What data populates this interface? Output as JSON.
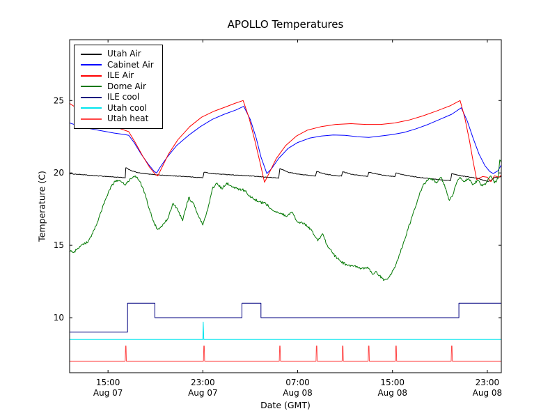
{
  "chart_data": {
    "type": "line",
    "title": "APOLLO Temperatures",
    "xlabel": "Date (GMT)",
    "ylabel": "Temperature (C)",
    "x_unit": "hours since Aug 07 00:00 GMT",
    "xlim": [
      11.76,
      48.18
    ],
    "ylim": [
      6.2,
      29.2
    ],
    "grid": false,
    "legend_position": "upper left",
    "x_ticks": [
      {
        "value": 15,
        "label_time": "15:00",
        "label_date": "Aug 07"
      },
      {
        "value": 23,
        "label_time": "23:00",
        "label_date": "Aug 07"
      },
      {
        "value": 31,
        "label_time": "07:00",
        "label_date": "Aug 08"
      },
      {
        "value": 39,
        "label_time": "15:00",
        "label_date": "Aug 08"
      },
      {
        "value": 47,
        "label_time": "23:00",
        "label_date": "Aug 08"
      }
    ],
    "y_ticks": [
      10,
      15,
      20,
      25
    ],
    "series": [
      {
        "name": "Utah Air",
        "color": "#000000",
        "noise": 0.02,
        "points": [
          [
            11.76,
            19.95
          ],
          [
            12.5,
            19.9
          ],
          [
            13.5,
            19.83
          ],
          [
            14.5,
            19.78
          ],
          [
            15.5,
            19.72
          ],
          [
            16.2,
            19.68
          ],
          [
            16.45,
            19.65
          ],
          [
            16.5,
            20.35
          ],
          [
            17.0,
            20.15
          ],
          [
            17.6,
            20.0
          ],
          [
            18.4,
            19.92
          ],
          [
            19.4,
            19.85
          ],
          [
            20.4,
            19.8
          ],
          [
            21.4,
            19.76
          ],
          [
            22.4,
            19.7
          ],
          [
            23.0,
            19.67
          ],
          [
            23.1,
            20.05
          ],
          [
            23.8,
            19.95
          ],
          [
            24.8,
            19.9
          ],
          [
            25.8,
            19.85
          ],
          [
            26.8,
            19.8
          ],
          [
            27.8,
            19.74
          ],
          [
            28.8,
            19.68
          ],
          [
            29.4,
            19.64
          ],
          [
            29.5,
            20.3
          ],
          [
            30.2,
            20.05
          ],
          [
            31.0,
            19.92
          ],
          [
            32.0,
            19.83
          ],
          [
            32.5,
            19.78
          ],
          [
            32.6,
            20.1
          ],
          [
            33.4,
            19.9
          ],
          [
            34.2,
            19.82
          ],
          [
            34.7,
            19.78
          ],
          [
            34.8,
            20.08
          ],
          [
            35.6,
            19.9
          ],
          [
            36.4,
            19.8
          ],
          [
            36.9,
            19.76
          ],
          [
            37.0,
            20.05
          ],
          [
            37.8,
            19.9
          ],
          [
            38.6,
            19.8
          ],
          [
            39.2,
            19.74
          ],
          [
            39.3,
            20.0
          ],
          [
            40.0,
            19.85
          ],
          [
            41.0,
            19.72
          ],
          [
            42.0,
            19.62
          ],
          [
            43.0,
            19.53
          ],
          [
            43.9,
            19.47
          ],
          [
            44.0,
            19.95
          ],
          [
            44.8,
            19.8
          ],
          [
            45.6,
            19.7
          ],
          [
            46.2,
            19.62
          ],
          [
            46.6,
            19.5
          ],
          [
            47.0,
            19.42
          ],
          [
            47.3,
            19.47
          ],
          [
            47.6,
            19.68
          ],
          [
            48.0,
            19.72
          ],
          [
            48.18,
            19.78
          ]
        ]
      },
      {
        "name": "Cabinet Air",
        "color": "#0000ff",
        "points": [
          [
            11.76,
            23.45
          ],
          [
            12.5,
            23.25
          ],
          [
            13.5,
            23.05
          ],
          [
            14.5,
            22.9
          ],
          [
            15.5,
            22.75
          ],
          [
            16.4,
            22.65
          ],
          [
            16.75,
            22.6
          ],
          [
            17.2,
            22.1
          ],
          [
            17.8,
            21.3
          ],
          [
            18.4,
            20.6
          ],
          [
            18.9,
            20.1
          ],
          [
            19.1,
            20.0
          ],
          [
            19.4,
            20.4
          ],
          [
            20.0,
            21.1
          ],
          [
            20.8,
            21.9
          ],
          [
            21.8,
            22.6
          ],
          [
            22.8,
            23.2
          ],
          [
            23.8,
            23.7
          ],
          [
            24.8,
            24.05
          ],
          [
            25.8,
            24.35
          ],
          [
            26.45,
            24.6
          ],
          [
            27.0,
            23.7
          ],
          [
            27.5,
            22.4
          ],
          [
            27.9,
            21.1
          ],
          [
            28.4,
            19.95
          ],
          [
            28.8,
            20.3
          ],
          [
            29.4,
            21.0
          ],
          [
            30.2,
            21.7
          ],
          [
            31.0,
            22.1
          ],
          [
            32.0,
            22.4
          ],
          [
            33.0,
            22.55
          ],
          [
            34.0,
            22.62
          ],
          [
            35.0,
            22.6
          ],
          [
            36.0,
            22.5
          ],
          [
            37.0,
            22.45
          ],
          [
            38.0,
            22.55
          ],
          [
            39.0,
            22.65
          ],
          [
            40.0,
            22.8
          ],
          [
            41.0,
            23.05
          ],
          [
            42.0,
            23.35
          ],
          [
            43.0,
            23.7
          ],
          [
            44.0,
            24.05
          ],
          [
            44.8,
            24.5
          ],
          [
            45.3,
            23.6
          ],
          [
            45.8,
            22.4
          ],
          [
            46.3,
            21.3
          ],
          [
            46.8,
            20.5
          ],
          [
            47.2,
            20.1
          ],
          [
            47.5,
            19.95
          ],
          [
            47.9,
            20.15
          ],
          [
            48.18,
            20.55
          ]
        ]
      },
      {
        "name": "ILE Air",
        "color": "#ff0000",
        "points": [
          [
            11.76,
            24.8
          ],
          [
            12.5,
            24.4
          ],
          [
            13.5,
            23.95
          ],
          [
            14.5,
            23.55
          ],
          [
            15.5,
            23.2
          ],
          [
            16.4,
            22.95
          ],
          [
            16.75,
            22.85
          ],
          [
            17.3,
            22.1
          ],
          [
            17.9,
            21.2
          ],
          [
            18.5,
            20.4
          ],
          [
            19.0,
            19.9
          ],
          [
            19.2,
            19.8
          ],
          [
            19.5,
            20.3
          ],
          [
            20.1,
            21.3
          ],
          [
            20.9,
            22.3
          ],
          [
            21.9,
            23.2
          ],
          [
            22.9,
            23.85
          ],
          [
            23.9,
            24.25
          ],
          [
            24.9,
            24.55
          ],
          [
            25.7,
            24.8
          ],
          [
            26.4,
            25.0
          ],
          [
            26.9,
            23.8
          ],
          [
            27.4,
            22.2
          ],
          [
            27.8,
            20.8
          ],
          [
            28.2,
            19.35
          ],
          [
            28.6,
            20.0
          ],
          [
            29.2,
            21.0
          ],
          [
            30.0,
            21.9
          ],
          [
            30.9,
            22.55
          ],
          [
            31.8,
            22.95
          ],
          [
            33.0,
            23.2
          ],
          [
            34.2,
            23.35
          ],
          [
            35.5,
            23.4
          ],
          [
            36.8,
            23.35
          ],
          [
            38.0,
            23.35
          ],
          [
            39.2,
            23.45
          ],
          [
            40.4,
            23.65
          ],
          [
            41.6,
            23.95
          ],
          [
            42.8,
            24.3
          ],
          [
            43.9,
            24.65
          ],
          [
            44.7,
            25.0
          ],
          [
            45.1,
            23.8
          ],
          [
            45.5,
            22.2
          ],
          [
            45.8,
            20.8
          ],
          [
            46.1,
            19.55
          ],
          [
            46.6,
            19.75
          ],
          [
            47.0,
            19.7
          ],
          [
            47.3,
            19.4
          ],
          [
            47.6,
            19.8
          ],
          [
            48.0,
            19.7
          ],
          [
            48.18,
            19.85
          ]
        ]
      },
      {
        "name": "Dome Air",
        "color": "#007700",
        "noise": 0.09,
        "points": [
          [
            11.76,
            14.6
          ],
          [
            12.1,
            14.5
          ],
          [
            12.5,
            14.8
          ],
          [
            12.9,
            15.1
          ],
          [
            13.3,
            15.2
          ],
          [
            13.7,
            15.8
          ],
          [
            14.1,
            16.6
          ],
          [
            14.5,
            17.5
          ],
          [
            14.9,
            18.4
          ],
          [
            15.3,
            19.1
          ],
          [
            15.7,
            19.5
          ],
          [
            16.1,
            19.4
          ],
          [
            16.5,
            19.2
          ],
          [
            16.9,
            19.6
          ],
          [
            17.3,
            19.8
          ],
          [
            17.7,
            19.4
          ],
          [
            18.1,
            18.6
          ],
          [
            18.5,
            17.5
          ],
          [
            18.9,
            16.5
          ],
          [
            19.2,
            16.1
          ],
          [
            19.6,
            16.4
          ],
          [
            20.0,
            16.8
          ],
          [
            20.5,
            17.9
          ],
          [
            20.9,
            17.4
          ],
          [
            21.3,
            16.7
          ],
          [
            21.8,
            18.3
          ],
          [
            22.2,
            17.9
          ],
          [
            22.6,
            17.1
          ],
          [
            23.0,
            16.4
          ],
          [
            23.4,
            17.4
          ],
          [
            23.8,
            18.9
          ],
          [
            24.2,
            19.3
          ],
          [
            24.6,
            18.9
          ],
          [
            25.0,
            19.3
          ],
          [
            25.4,
            19.1
          ],
          [
            25.9,
            18.9
          ],
          [
            26.5,
            18.8
          ],
          [
            27.1,
            18.3
          ],
          [
            27.7,
            18.0
          ],
          [
            28.3,
            17.9
          ],
          [
            28.9,
            17.4
          ],
          [
            29.5,
            17.2
          ],
          [
            30.1,
            17.0
          ],
          [
            30.5,
            17.3
          ],
          [
            31.0,
            16.6
          ],
          [
            31.6,
            16.5
          ],
          [
            32.2,
            16.0
          ],
          [
            32.7,
            15.3
          ],
          [
            33.1,
            15.8
          ],
          [
            33.5,
            15.0
          ],
          [
            34.0,
            14.4
          ],
          [
            34.6,
            13.9
          ],
          [
            35.2,
            13.6
          ],
          [
            35.8,
            13.6
          ],
          [
            36.4,
            13.4
          ],
          [
            36.9,
            13.5
          ],
          [
            37.3,
            13.0
          ],
          [
            37.6,
            13.2
          ],
          [
            37.9,
            12.9
          ],
          [
            38.3,
            12.6
          ],
          [
            38.7,
            12.8
          ],
          [
            39.1,
            13.3
          ],
          [
            39.5,
            14.1
          ],
          [
            39.9,
            15.1
          ],
          [
            40.3,
            16.1
          ],
          [
            40.7,
            17.1
          ],
          [
            41.1,
            18.1
          ],
          [
            41.5,
            19.0
          ],
          [
            41.9,
            19.5
          ],
          [
            42.3,
            19.6
          ],
          [
            42.7,
            19.3
          ],
          [
            43.1,
            19.7
          ],
          [
            43.5,
            18.9
          ],
          [
            43.8,
            18.1
          ],
          [
            44.1,
            18.5
          ],
          [
            44.4,
            19.3
          ],
          [
            44.7,
            19.7
          ],
          [
            45.0,
            19.4
          ],
          [
            45.4,
            19.6
          ],
          [
            45.8,
            19.2
          ],
          [
            46.2,
            19.5
          ],
          [
            46.6,
            19.1
          ],
          [
            47.0,
            19.4
          ],
          [
            47.3,
            19.8
          ],
          [
            47.6,
            19.3
          ],
          [
            47.9,
            19.6
          ],
          [
            48.05,
            20.9
          ],
          [
            48.18,
            20.7
          ]
        ]
      },
      {
        "name": "ILE cool",
        "color": "#000080",
        "points": [
          [
            11.76,
            9.0
          ],
          [
            16.65,
            9.0
          ],
          [
            16.65,
            11.0
          ],
          [
            18.95,
            11.0
          ],
          [
            18.95,
            10.0
          ],
          [
            26.3,
            10.0
          ],
          [
            26.3,
            11.0
          ],
          [
            27.9,
            11.0
          ],
          [
            27.9,
            10.0
          ],
          [
            44.6,
            10.0
          ],
          [
            44.6,
            11.0
          ],
          [
            48.18,
            11.0
          ]
        ]
      },
      {
        "name": "Utah cool",
        "color": "#00e5ee",
        "points": [
          [
            11.76,
            8.5
          ],
          [
            23.0,
            8.5
          ],
          [
            23.03,
            9.7
          ],
          [
            23.08,
            8.5
          ],
          [
            48.18,
            8.5
          ]
        ]
      },
      {
        "name": "Utah heat",
        "color": "#ff4545",
        "points": [
          [
            11.76,
            7.0
          ],
          [
            16.45,
            7.0
          ],
          [
            16.48,
            8.05
          ],
          [
            16.52,
            8.05
          ],
          [
            16.55,
            7.0
          ],
          [
            23.05,
            7.0
          ],
          [
            23.08,
            8.05
          ],
          [
            23.12,
            8.05
          ],
          [
            23.15,
            7.0
          ],
          [
            29.45,
            7.0
          ],
          [
            29.48,
            8.05
          ],
          [
            29.52,
            8.05
          ],
          [
            29.55,
            7.0
          ],
          [
            32.55,
            7.0
          ],
          [
            32.58,
            8.05
          ],
          [
            32.62,
            8.05
          ],
          [
            32.65,
            7.0
          ],
          [
            34.75,
            7.0
          ],
          [
            34.78,
            8.05
          ],
          [
            34.82,
            8.05
          ],
          [
            34.85,
            7.0
          ],
          [
            36.95,
            7.0
          ],
          [
            36.98,
            8.05
          ],
          [
            37.02,
            8.05
          ],
          [
            37.05,
            7.0
          ],
          [
            39.25,
            7.0
          ],
          [
            39.28,
            8.05
          ],
          [
            39.32,
            8.05
          ],
          [
            39.35,
            7.0
          ],
          [
            43.95,
            7.0
          ],
          [
            43.98,
            8.05
          ],
          [
            44.02,
            8.05
          ],
          [
            44.05,
            7.0
          ],
          [
            48.18,
            7.0
          ]
        ]
      }
    ]
  }
}
